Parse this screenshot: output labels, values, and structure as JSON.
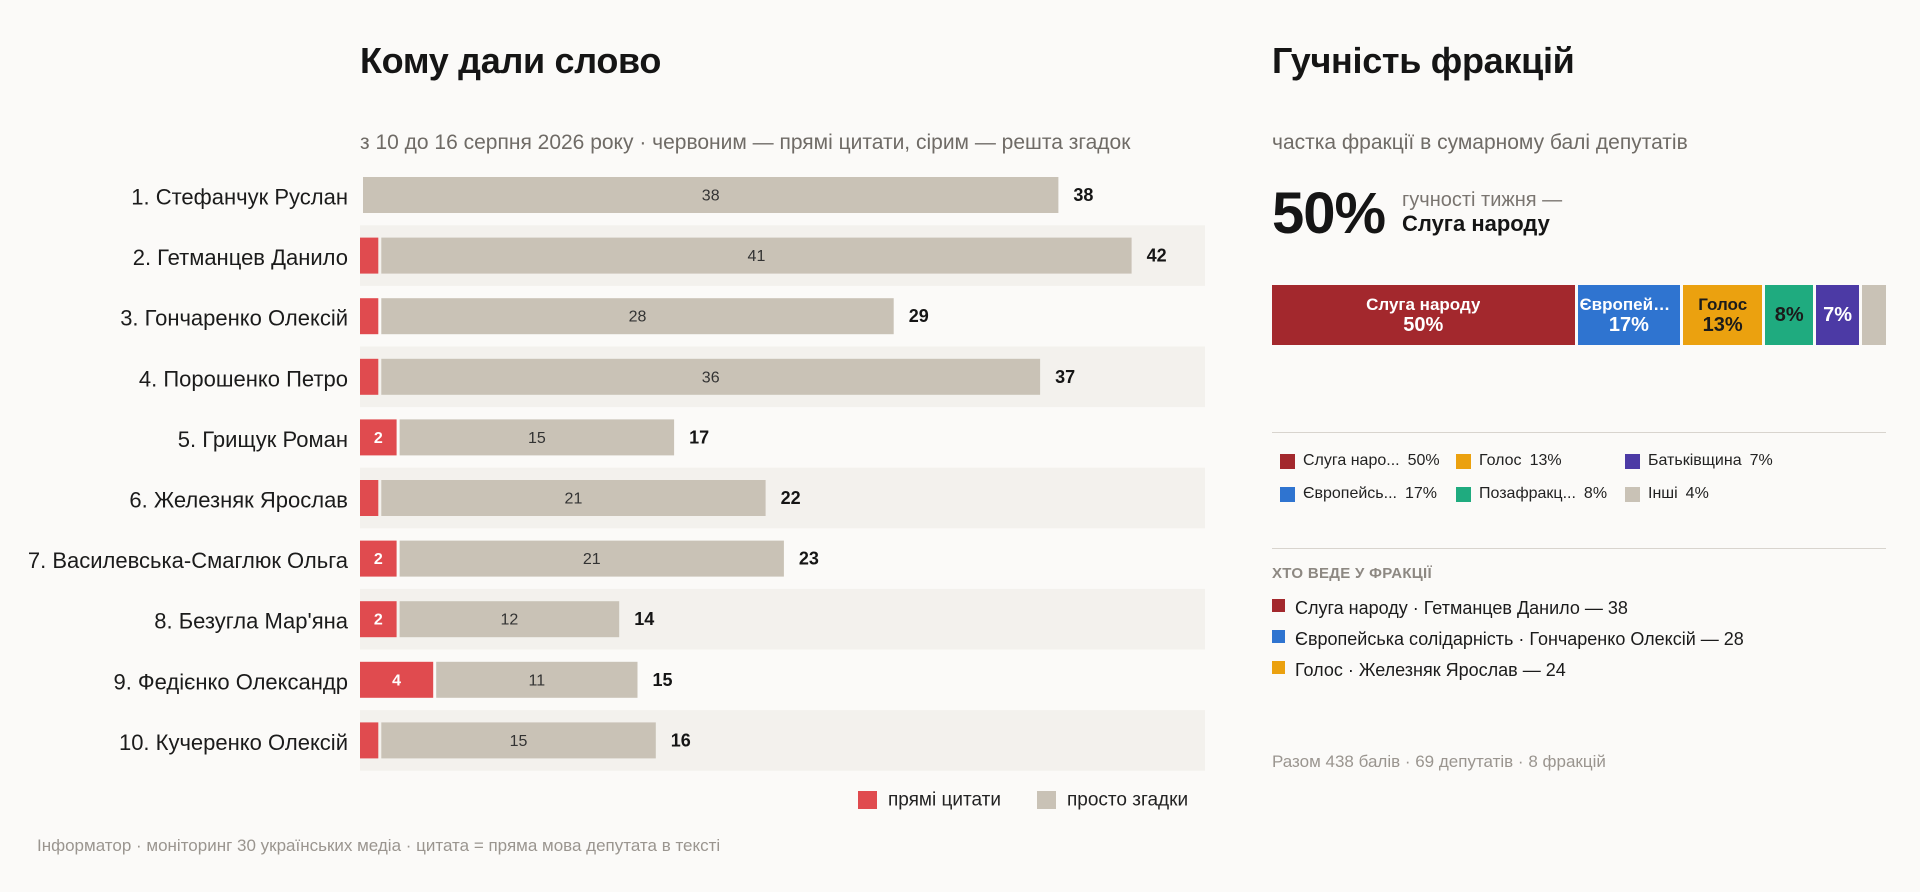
{
  "left_panel": {
    "title": "Кому дали слово",
    "subtitle": "з 10 до 16 серпня 2026 року · червоним — прямі цитати, сірим — решта згадок",
    "footer": "Інформатор · моніторинг 30 українських медіа · цитата = пряма мова депутата в тексті"
  },
  "colors": {
    "quotes": "#e04b4f",
    "mentions": "#c9c2b6",
    "row_stripe": "#f3f1ed"
  },
  "chart_data": [
    {
      "type": "bar",
      "orientation": "horizontal",
      "stacked": true,
      "categories": [
        "1. Стефанчук Руслан",
        "2. Гетманцев Данило",
        "3. Гончаренко Олексій",
        "4. Порошенко Петро",
        "5. Грищук Роман",
        "6. Железняк Ярослав",
        "7. Василевська-Смаглюк Ольга",
        "8. Безугла Мар'яна",
        "9. Федієнко Олександр",
        "10. Кучеренко Олексій"
      ],
      "series": [
        {
          "name": "прямі цитати",
          "color": "#e04b4f",
          "values": [
            0,
            1,
            1,
            1,
            2,
            1,
            2,
            2,
            4,
            1
          ]
        },
        {
          "name": "просто згадки",
          "color": "#c9c2b6",
          "values": [
            38,
            41,
            28,
            36,
            15,
            21,
            21,
            12,
            11,
            15
          ]
        }
      ],
      "totals": [
        38,
        42,
        29,
        37,
        17,
        22,
        23,
        14,
        15,
        16
      ],
      "legend": "bottom-right"
    },
    {
      "type": "bar",
      "orientation": "horizontal",
      "stacked": true,
      "subtitle": "частка фракції в сумарному балі депутатів",
      "categories": [
        "Слуга народу",
        "Європейська солідарність",
        "Голос",
        "Позафракційні",
        "Батьківщина",
        "Інші"
      ],
      "values": [
        50,
        17,
        13,
        8,
        7,
        4
      ],
      "unit": "%"
    }
  ],
  "right_panel": {
    "title": "Гучність фракцій",
    "subtitle": "частка фракції в сумарному балі депутатів",
    "highlight": {
      "percent": "50%",
      "caption": "гучності тижня —",
      "party": "Слуга народу"
    },
    "segments": [
      {
        "name": "Слуга народу",
        "pct": "50%",
        "value": 50,
        "color": "#a3282d",
        "text_color": "#ffffff"
      },
      {
        "name": "Європейська солідарність",
        "pct": "17%",
        "value": 17,
        "color": "#2f74d0",
        "text_color": "#ffffff"
      },
      {
        "name": "Голос",
        "pct": "13%",
        "value": 13,
        "color": "#eba10f",
        "text_color": "#1b1b1b"
      },
      {
        "name": "",
        "pct": "8%",
        "value": 8,
        "color": "#1fab7f",
        "text_color": "#1b1b1b"
      },
      {
        "name": "",
        "pct": "7%",
        "value": 7,
        "color": "#4c3aa5",
        "text_color": "#ffffff"
      },
      {
        "name": "",
        "pct": "",
        "value": 4,
        "color": "#c9c2b6",
        "text_color": "#1b1b1b"
      }
    ],
    "legend": [
      {
        "label": "Слуга наро...",
        "pct": "50%",
        "color": "#a3282d"
      },
      {
        "label": "Голос",
        "pct": "13%",
        "color": "#eba10f"
      },
      {
        "label": "Батьківщина",
        "pct": "7%",
        "color": "#4c3aa5"
      },
      {
        "label": "Європейсь...",
        "pct": "17%",
        "color": "#2f74d0"
      },
      {
        "label": "Позафракц...",
        "pct": "8%",
        "color": "#1fab7f"
      },
      {
        "label": "Інші",
        "pct": "4%",
        "color": "#c9c2b6"
      }
    ],
    "leaders_heading": "ХТО ВЕДЕ У ФРАКЦІЇ",
    "leaders": [
      {
        "text": "Слуга народу · Гетманцев Данило — 38",
        "color": "#a3282d"
      },
      {
        "text": "Європейська солідарність · Гончаренко Олексій — 28",
        "color": "#2f74d0"
      },
      {
        "text": "Голос · Железняк Ярослав — 24",
        "color": "#eba10f"
      }
    ],
    "totals": "Разом 438 балів · 69 депутатів · 8 фракцій"
  }
}
